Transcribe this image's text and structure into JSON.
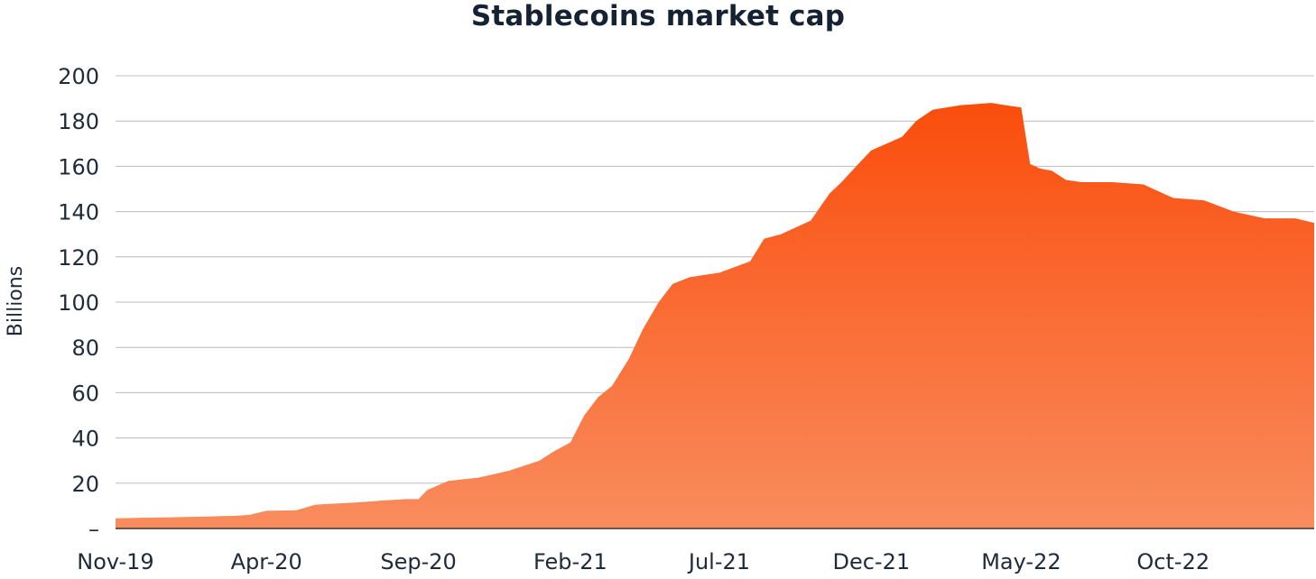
{
  "chart_data": {
    "type": "area",
    "title": "Stablecoins market cap",
    "xlabel": "",
    "ylabel": "Billions",
    "x_tick_labels": [
      "Nov-19",
      "Apr-20",
      "Sep-20",
      "Feb-21",
      "Jul-21",
      "Dec-21",
      "May-22",
      "Oct-22"
    ],
    "y_tick_labels": [
      "–",
      "20",
      "40",
      "60",
      "80",
      "100",
      "120",
      "140",
      "160",
      "180",
      "200"
    ],
    "ylim": [
      0,
      200
    ],
    "grid": true,
    "colors": {
      "area_top": "#fa4d0c",
      "area_bottom": "#f98c5e",
      "grid": "#b9bcc0",
      "axis": "#333333"
    },
    "series": [
      {
        "x": [
          "2019-11-01",
          "2019-12-01",
          "2020-01-01",
          "2020-02-01",
          "2020-03-01",
          "2020-03-15",
          "2020-04-01",
          "2020-05-01",
          "2020-05-20",
          "2020-06-01",
          "2020-07-01",
          "2020-08-01",
          "2020-08-20",
          "2020-09-01",
          "2020-09-10",
          "2020-10-01",
          "2020-11-01",
          "2020-12-01",
          "2021-01-01",
          "2021-01-15",
          "2021-02-01",
          "2021-02-15",
          "2021-03-01",
          "2021-03-15",
          "2021-04-01",
          "2021-04-15",
          "2021-05-01",
          "2021-05-15",
          "2021-06-01",
          "2021-07-01",
          "2021-08-01",
          "2021-08-15",
          "2021-09-01",
          "2021-10-01",
          "2021-10-20",
          "2021-11-01",
          "2021-11-20",
          "2021-12-01",
          "2022-01-01",
          "2022-01-15",
          "2022-02-01",
          "2022-03-01",
          "2022-04-01",
          "2022-04-15",
          "2022-05-01",
          "2022-05-10",
          "2022-05-20",
          "2022-06-01",
          "2022-06-15",
          "2022-07-01",
          "2022-08-01",
          "2022-09-01",
          "2022-10-01",
          "2022-11-01",
          "2022-12-01",
          "2023-01-01",
          "2023-02-01",
          "2023-02-20"
        ],
        "values": [
          4.5,
          4.8,
          5.0,
          5.3,
          5.6,
          6.0,
          7.8,
          8.0,
          10.5,
          10.8,
          11.5,
          12.5,
          13.0,
          13.0,
          17.0,
          21.0,
          22.5,
          25.5,
          30.0,
          34.0,
          38.0,
          50.0,
          58.0,
          63.0,
          75.0,
          88.0,
          100.0,
          108.0,
          111.0,
          113.0,
          118.0,
          128.0,
          130.0,
          136.0,
          148.0,
          153.0,
          162.0,
          167.0,
          173.0,
          180.0,
          185.0,
          187.0,
          188.0,
          187.0,
          186.0,
          161.0,
          159.0,
          158.0,
          154.0,
          153.0,
          153.0,
          152.0,
          146.0,
          145.0,
          140.0,
          137.0,
          137.0,
          135.0
        ]
      }
    ]
  }
}
